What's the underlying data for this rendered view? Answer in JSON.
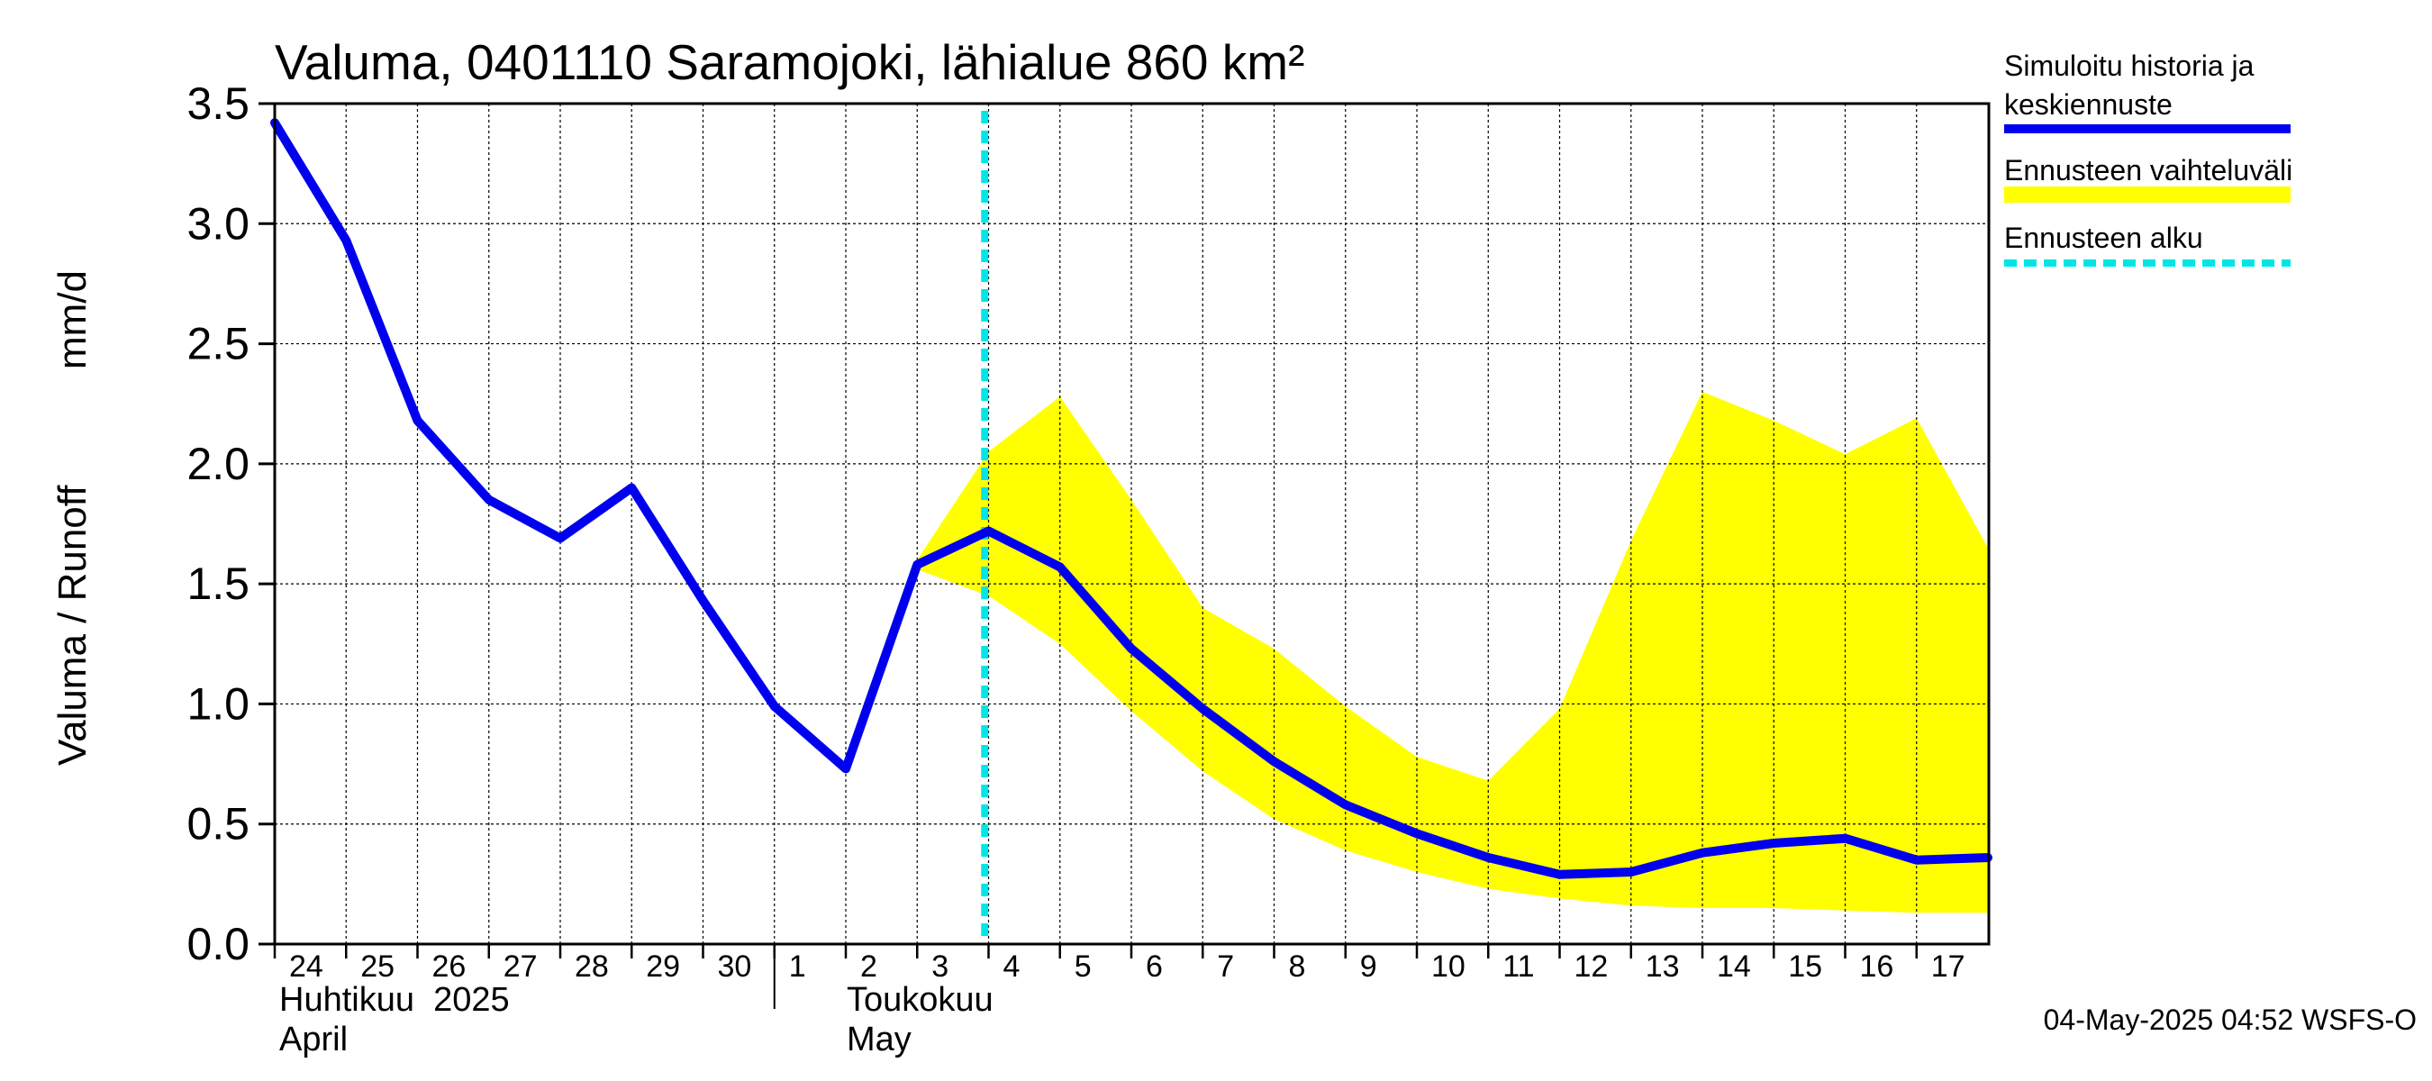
{
  "chart_data": {
    "type": "line",
    "title": "Valuma, 0401110 Saramojoki, lähialue 860 km²",
    "ylabel_left": "Valuma / Runoff",
    "ylabel_right": "mm/d",
    "ylim": [
      0,
      3.5
    ],
    "yticks": [
      "0.0",
      "0.5",
      "1.0",
      "1.5",
      "2.0",
      "2.5",
      "3.0",
      "3.5"
    ],
    "x_start_date": "2025-04-24",
    "x_end_date": "2025-05-17",
    "xticks": [
      "24",
      "25",
      "26",
      "27",
      "28",
      "29",
      "30",
      "1",
      "2",
      "3",
      "4",
      "5",
      "6",
      "7",
      "8",
      "9",
      "10",
      "11",
      "12",
      "13",
      "14",
      "15",
      "16",
      "17"
    ],
    "month_labels": [
      {
        "line1": "Huhtikuu  2025",
        "line2": "April",
        "date": "2025-04-24"
      },
      {
        "line1": "Toukokuu",
        "line2": "May",
        "date": "2025-05-02"
      }
    ],
    "forecast_start": "2025-05-03",
    "series": [
      {
        "name": "Simuloitu historia ja keskiennuste",
        "color": "#0000ee",
        "points": [
          [
            "2025-04-24",
            3.42
          ],
          [
            "2025-04-25",
            2.93
          ],
          [
            "2025-04-26",
            2.18
          ],
          [
            "2025-04-27",
            1.85
          ],
          [
            "2025-04-28",
            1.69
          ],
          [
            "2025-04-29",
            1.9
          ],
          [
            "2025-04-30",
            1.43
          ],
          [
            "2025-05-01",
            0.99
          ],
          [
            "2025-05-02",
            0.73
          ],
          [
            "2025-05-03",
            1.58
          ],
          [
            "2025-05-04",
            1.72
          ],
          [
            "2025-05-05",
            1.57
          ],
          [
            "2025-05-06",
            1.23
          ],
          [
            "2025-05-07",
            0.98
          ],
          [
            "2025-05-08",
            0.76
          ],
          [
            "2025-05-09",
            0.58
          ],
          [
            "2025-05-10",
            0.46
          ],
          [
            "2025-05-11",
            0.36
          ],
          [
            "2025-05-12",
            0.29
          ],
          [
            "2025-05-13",
            0.3
          ],
          [
            "2025-05-14",
            0.38
          ],
          [
            "2025-05-15",
            0.42
          ],
          [
            "2025-05-16",
            0.44
          ],
          [
            "2025-05-17",
            0.35
          ],
          [
            "2025-05-18",
            0.36
          ]
        ]
      },
      {
        "name": "Ennusteen vaihteluväli",
        "color": "#ffff00",
        "band": [
          [
            "2025-05-03",
            1.56,
            1.6
          ],
          [
            "2025-05-04",
            1.45,
            2.05
          ],
          [
            "2025-05-05",
            1.25,
            2.28
          ],
          [
            "2025-05-06",
            0.97,
            1.85
          ],
          [
            "2025-05-07",
            0.72,
            1.4
          ],
          [
            "2025-05-08",
            0.52,
            1.23
          ],
          [
            "2025-05-09",
            0.39,
            0.99
          ],
          [
            "2025-05-10",
            0.3,
            0.78
          ],
          [
            "2025-05-11",
            0.23,
            0.68
          ],
          [
            "2025-05-12",
            0.19,
            0.98
          ],
          [
            "2025-05-13",
            0.16,
            1.68
          ],
          [
            "2025-05-14",
            0.15,
            2.3
          ],
          [
            "2025-05-15",
            0.15,
            2.18
          ],
          [
            "2025-05-16",
            0.14,
            2.04
          ],
          [
            "2025-05-17",
            0.13,
            2.19
          ],
          [
            "2025-05-18",
            0.13,
            1.65
          ]
        ]
      },
      {
        "name": "Ennusteen alku",
        "color": "#00e5e5"
      }
    ],
    "grid": true,
    "legend_position": "right"
  },
  "legend": {
    "history_line1": "Simuloitu historia ja",
    "history_line2": "keskiennuste",
    "range_label": "Ennusteen vaihteluväli",
    "start_label": "Ennusteen alku"
  },
  "footer": {
    "timestamp": "04-May-2025 04:52 WSFS-O"
  }
}
